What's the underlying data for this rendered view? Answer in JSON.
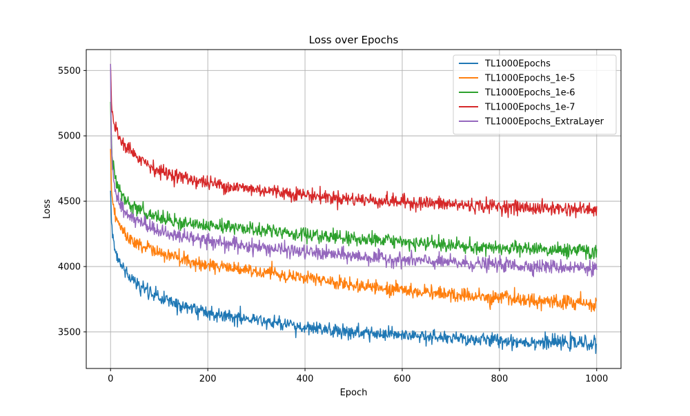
{
  "chart_data": {
    "type": "line",
    "title": "Loss over Epochs",
    "xlabel": "Epoch",
    "ylabel": "Loss",
    "xlim": [
      -50,
      1050
    ],
    "ylim": [
      3220,
      5660
    ],
    "xticks": [
      0,
      200,
      400,
      600,
      800,
      1000
    ],
    "yticks": [
      3500,
      4000,
      4500,
      5000,
      5500
    ],
    "grid": true,
    "legend_position": "top-right",
    "colors": {
      "TL1000Epochs": "#1f77b4",
      "TL1000Epochs_1e-5": "#ff7f0e",
      "TL1000Epochs_1e-6": "#2ca02c",
      "TL1000Epochs_1e-7": "#d62728",
      "TL1000Epochs_ExtraLayer": "#9467bd"
    },
    "series": [
      {
        "name": "TL1000Epochs",
        "points": [
          [
            0,
            4580
          ],
          [
            2,
            4350
          ],
          [
            5,
            4250
          ],
          [
            10,
            4120
          ],
          [
            20,
            4020
          ],
          [
            30,
            3960
          ],
          [
            50,
            3880
          ],
          [
            75,
            3810
          ],
          [
            100,
            3760
          ],
          [
            150,
            3700
          ],
          [
            200,
            3650
          ],
          [
            250,
            3620
          ],
          [
            300,
            3590
          ],
          [
            350,
            3560
          ],
          [
            400,
            3530
          ],
          [
            450,
            3510
          ],
          [
            500,
            3495
          ],
          [
            550,
            3480
          ],
          [
            600,
            3470
          ],
          [
            650,
            3460
          ],
          [
            700,
            3450
          ],
          [
            750,
            3440
          ],
          [
            800,
            3435
          ],
          [
            850,
            3425
          ],
          [
            900,
            3420
          ],
          [
            950,
            3415
          ],
          [
            1000,
            3410
          ]
        ],
        "noise_amplitude": 45
      },
      {
        "name": "TL1000Epochs_1e-5",
        "points": [
          [
            0,
            4900
          ],
          [
            2,
            4600
          ],
          [
            5,
            4480
          ],
          [
            10,
            4380
          ],
          [
            20,
            4300
          ],
          [
            30,
            4250
          ],
          [
            50,
            4190
          ],
          [
            75,
            4140
          ],
          [
            100,
            4100
          ],
          [
            150,
            4050
          ],
          [
            200,
            4010
          ],
          [
            250,
            3990
          ],
          [
            300,
            3960
          ],
          [
            350,
            3940
          ],
          [
            400,
            3910
          ],
          [
            450,
            3880
          ],
          [
            500,
            3860
          ],
          [
            550,
            3840
          ],
          [
            600,
            3820
          ],
          [
            650,
            3800
          ],
          [
            700,
            3785
          ],
          [
            750,
            3770
          ],
          [
            800,
            3760
          ],
          [
            850,
            3745
          ],
          [
            900,
            3735
          ],
          [
            950,
            3725
          ],
          [
            1000,
            3715
          ]
        ],
        "noise_amplitude": 45
      },
      {
        "name": "TL1000Epochs_1e-6",
        "points": [
          [
            0,
            5260
          ],
          [
            2,
            4950
          ],
          [
            5,
            4780
          ],
          [
            10,
            4650
          ],
          [
            20,
            4570
          ],
          [
            30,
            4510
          ],
          [
            50,
            4450
          ],
          [
            75,
            4400
          ],
          [
            100,
            4370
          ],
          [
            150,
            4340
          ],
          [
            200,
            4320
          ],
          [
            250,
            4300
          ],
          [
            300,
            4280
          ],
          [
            350,
            4260
          ],
          [
            400,
            4240
          ],
          [
            450,
            4225
          ],
          [
            500,
            4210
          ],
          [
            550,
            4200
          ],
          [
            600,
            4185
          ],
          [
            650,
            4170
          ],
          [
            700,
            4160
          ],
          [
            750,
            4150
          ],
          [
            800,
            4145
          ],
          [
            850,
            4135
          ],
          [
            900,
            4130
          ],
          [
            950,
            4125
          ],
          [
            1000,
            4120
          ]
        ],
        "noise_amplitude": 45
      },
      {
        "name": "TL1000Epochs_1e-7",
        "points": [
          [
            0,
            5550
          ],
          [
            2,
            5250
          ],
          [
            5,
            5130
          ],
          [
            10,
            5060
          ],
          [
            20,
            4980
          ],
          [
            30,
            4930
          ],
          [
            50,
            4860
          ],
          [
            75,
            4790
          ],
          [
            100,
            4730
          ],
          [
            150,
            4680
          ],
          [
            200,
            4640
          ],
          [
            250,
            4610
          ],
          [
            300,
            4590
          ],
          [
            350,
            4570
          ],
          [
            400,
            4550
          ],
          [
            450,
            4530
          ],
          [
            500,
            4515
          ],
          [
            550,
            4505
          ],
          [
            600,
            4495
          ],
          [
            650,
            4485
          ],
          [
            700,
            4475
          ],
          [
            750,
            4465
          ],
          [
            800,
            4460
          ],
          [
            850,
            4450
          ],
          [
            900,
            4445
          ],
          [
            950,
            4440
          ],
          [
            1000,
            4435
          ]
        ],
        "noise_amplitude": 45
      },
      {
        "name": "TL1000Epochs_ExtraLayer",
        "points": [
          [
            0,
            5550
          ],
          [
            2,
            4900
          ],
          [
            5,
            4700
          ],
          [
            10,
            4560
          ],
          [
            20,
            4480
          ],
          [
            30,
            4430
          ],
          [
            50,
            4360
          ],
          [
            75,
            4310
          ],
          [
            100,
            4270
          ],
          [
            150,
            4230
          ],
          [
            200,
            4200
          ],
          [
            250,
            4170
          ],
          [
            300,
            4150
          ],
          [
            350,
            4130
          ],
          [
            400,
            4110
          ],
          [
            450,
            4095
          ],
          [
            500,
            4080
          ],
          [
            550,
            4065
          ],
          [
            600,
            4050
          ],
          [
            650,
            4040
          ],
          [
            700,
            4030
          ],
          [
            750,
            4020
          ],
          [
            800,
            4015
          ],
          [
            850,
            4005
          ],
          [
            900,
            4000
          ],
          [
            950,
            3995
          ],
          [
            1000,
            3990
          ]
        ],
        "noise_amplitude": 45
      }
    ]
  }
}
